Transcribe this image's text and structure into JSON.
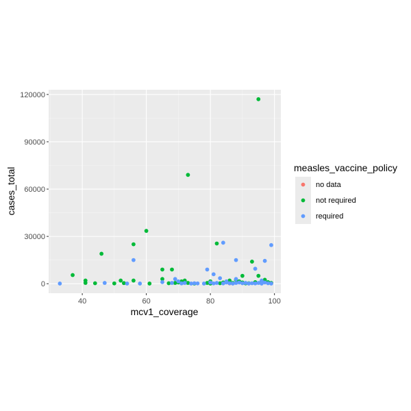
{
  "chart_data": {
    "type": "scatter",
    "xlabel": "mcv1_coverage",
    "ylabel": "cases_total",
    "xlim": [
      29.5,
      102
    ],
    "ylim": [
      -6000,
      123000
    ],
    "x_ticks": [
      40,
      60,
      80,
      100
    ],
    "y_ticks": [
      0,
      30000,
      60000,
      90000,
      120000
    ],
    "x_tick_labels": [
      "40",
      "60",
      "80",
      "100"
    ],
    "y_tick_labels": [
      "0",
      "30000",
      "60000",
      "90000",
      "120000"
    ],
    "grid": true,
    "legend": {
      "title": "measles_vaccine_policy",
      "placement": "right"
    },
    "series": [
      {
        "name": "no data",
        "color": "#F8766D",
        "points": [
          [
            84,
            300
          ],
          [
            86,
            200
          ],
          [
            99,
            400
          ],
          [
            98,
            800
          ]
        ]
      },
      {
        "name": "not required",
        "color": "#00BA38",
        "points": [
          [
            95,
            117000
          ],
          [
            73,
            69000
          ],
          [
            60,
            33500
          ],
          [
            82,
            25500
          ],
          [
            56,
            25000
          ],
          [
            46,
            19000
          ],
          [
            93,
            14000
          ],
          [
            37,
            5500
          ],
          [
            65,
            9000
          ],
          [
            68,
            9000
          ],
          [
            90,
            5000
          ],
          [
            95,
            5000
          ],
          [
            65,
            3000
          ],
          [
            41,
            2000
          ],
          [
            52,
            2000
          ],
          [
            56,
            2000
          ],
          [
            41,
            500
          ],
          [
            44,
            300
          ],
          [
            50,
            200
          ],
          [
            53,
            400
          ],
          [
            61,
            100
          ],
          [
            67,
            300
          ],
          [
            70,
            800
          ],
          [
            71,
            1500
          ],
          [
            72,
            2000
          ],
          [
            73,
            500
          ],
          [
            75,
            100
          ],
          [
            79,
            500
          ],
          [
            80,
            1500
          ],
          [
            80,
            100
          ],
          [
            84,
            800
          ],
          [
            86,
            2000
          ],
          [
            87,
            500
          ],
          [
            89,
            1500
          ],
          [
            90,
            800
          ],
          [
            92,
            300
          ],
          [
            96,
            1500
          ],
          [
            97,
            2500
          ],
          [
            98,
            1000
          ],
          [
            99,
            500
          ],
          [
            88,
            2500
          ],
          [
            91,
            200
          ],
          [
            94,
            1000
          ],
          [
            83,
            300
          ],
          [
            69,
            500
          ]
        ]
      },
      {
        "name": "required",
        "color": "#619CFF",
        "points": [
          [
            99,
            24500
          ],
          [
            84,
            26000
          ],
          [
            88,
            15000
          ],
          [
            97,
            14500
          ],
          [
            56,
            15000
          ],
          [
            94,
            9500
          ],
          [
            79,
            9000
          ],
          [
            81,
            6000
          ],
          [
            83,
            3500
          ],
          [
            69,
            3000
          ],
          [
            88,
            3000
          ],
          [
            65,
            1000
          ],
          [
            33,
            100
          ],
          [
            47,
            500
          ],
          [
            54,
            100
          ],
          [
            58,
            100
          ],
          [
            68,
            500
          ],
          [
            70,
            1500
          ],
          [
            71,
            200
          ],
          [
            72,
            500
          ],
          [
            74,
            100
          ],
          [
            75,
            300
          ],
          [
            76,
            200
          ],
          [
            78,
            100
          ],
          [
            80,
            800
          ],
          [
            81,
            200
          ],
          [
            82,
            500
          ],
          [
            84,
            200
          ],
          [
            85,
            800
          ],
          [
            86,
            300
          ],
          [
            87,
            100
          ],
          [
            88,
            500
          ],
          [
            89,
            800
          ],
          [
            90,
            300
          ],
          [
            91,
            500
          ],
          [
            92,
            100
          ],
          [
            93,
            300
          ],
          [
            94,
            200
          ],
          [
            95,
            500
          ],
          [
            96,
            100
          ],
          [
            97,
            800
          ],
          [
            98,
            300
          ],
          [
            99,
            100
          ],
          [
            85,
            1500
          ],
          [
            96,
            2000
          ]
        ]
      }
    ]
  }
}
